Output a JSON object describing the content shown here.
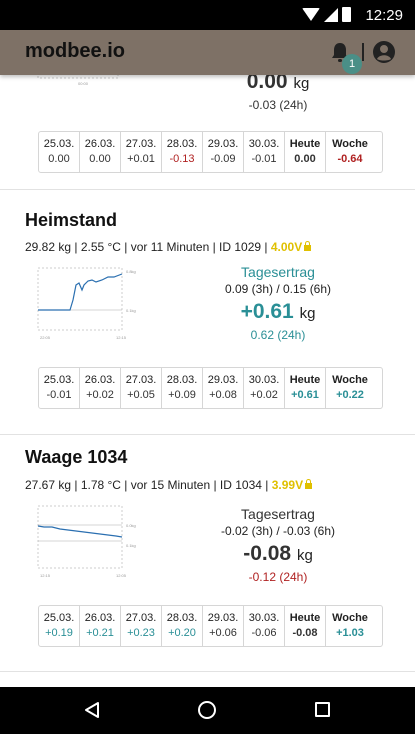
{
  "status_bar": {
    "time": "12:29"
  },
  "app_bar": {
    "title": "modbee.io",
    "notification_count": "1"
  },
  "top_card": {
    "value": "0.00",
    "unit": "kg",
    "h24": "-0.03 (24h)",
    "days": [
      {
        "date": "25.03.",
        "value": "0.00",
        "tone": "dark"
      },
      {
        "date": "26.03.",
        "value": "0.00",
        "tone": "dark"
      },
      {
        "date": "27.03.",
        "value": "+0.01",
        "tone": "dark"
      },
      {
        "date": "28.03.",
        "value": "-0.13",
        "tone": "red"
      },
      {
        "date": "29.03.",
        "value": "-0.09",
        "tone": "dark"
      },
      {
        "date": "30.03.",
        "value": "-0.01",
        "tone": "dark"
      },
      {
        "date": "Heute",
        "value": "0.00",
        "tone": "dark",
        "bold": true
      },
      {
        "date": "Woche",
        "value": "-0.64",
        "tone": "red",
        "bold": true
      }
    ]
  },
  "cards": [
    {
      "title": "Heimstand",
      "info": "29.82 kg  |  2.55 °C  |  vor 11 Minuten  |  ID 1029  |",
      "voltage": "4.00V",
      "yield_label": "Tagesertrag",
      "yield_sub": "0.09 (3h) / 0.15 (6h)",
      "yield_value": "+0.61",
      "unit": "kg",
      "yield_24h": "0.62 (24h)",
      "days": [
        {
          "date": "25.03.",
          "value": "-0.01",
          "tone": "dark"
        },
        {
          "date": "26.03.",
          "value": "+0.02",
          "tone": "dark"
        },
        {
          "date": "27.03.",
          "value": "+0.05",
          "tone": "dark"
        },
        {
          "date": "28.03.",
          "value": "+0.09",
          "tone": "dark"
        },
        {
          "date": "29.03.",
          "value": "+0.08",
          "tone": "dark"
        },
        {
          "date": "30.03.",
          "value": "+0.02",
          "tone": "dark"
        },
        {
          "date": "Heute",
          "value": "+0.61",
          "tone": "teal",
          "bold": true
        },
        {
          "date": "Woche",
          "value": "+0.22",
          "tone": "teal",
          "bold": true
        }
      ]
    },
    {
      "title": "Waage 1034",
      "info": "27.67 kg  |  1.78 °C  |  vor 15 Minuten  |  ID 1034  |",
      "voltage": "3.99V",
      "yield_label": "Tagesertrag",
      "yield_sub": "-0.02 (3h) / -0.03 (6h)",
      "yield_value": "-0.08",
      "unit": "kg",
      "yield_24h": "-0.12 (24h)",
      "days": [
        {
          "date": "25.03.",
          "value": "+0.19",
          "tone": "teal"
        },
        {
          "date": "26.03.",
          "value": "+0.21",
          "tone": "teal"
        },
        {
          "date": "27.03.",
          "value": "+0.23",
          "tone": "teal"
        },
        {
          "date": "28.03.",
          "value": "+0.20",
          "tone": "teal"
        },
        {
          "date": "29.03.",
          "value": "+0.06",
          "tone": "dark"
        },
        {
          "date": "30.03.",
          "value": "-0.06",
          "tone": "dark"
        },
        {
          "date": "Heute",
          "value": "-0.08",
          "tone": "dark",
          "bold": true
        },
        {
          "date": "Woche",
          "value": "+1.03",
          "tone": "teal",
          "bold": true
        }
      ]
    }
  ],
  "colors": {
    "appbar": "#7e7166",
    "teal": "#2a8f96",
    "red": "#b02222",
    "voltage": "#e0c000",
    "badge": "#4a8f87"
  }
}
